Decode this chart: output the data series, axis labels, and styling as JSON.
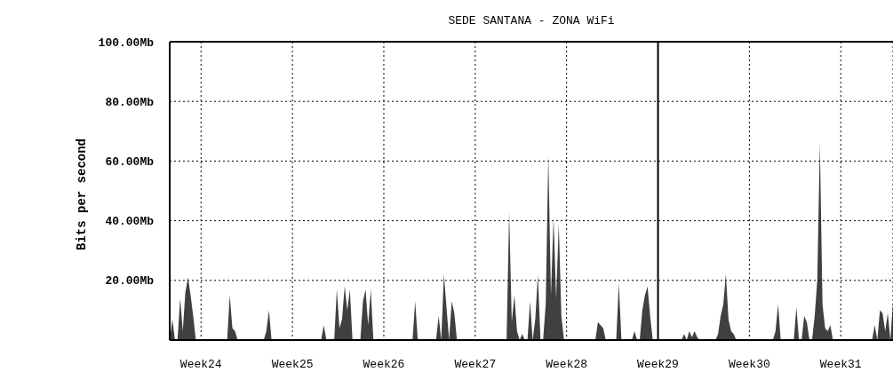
{
  "chart_data": {
    "type": "area",
    "title": "SEDE SANTANA - ZONA WiFi",
    "ylabel": "Bits per second",
    "categories": [
      null,
      null,
      null,
      null,
      null,
      null,
      null,
      null,
      null,
      null,
      null,
      null,
      "Week24",
      null,
      null,
      null,
      null,
      null,
      null,
      null,
      null,
      null,
      null,
      null,
      null,
      null,
      null,
      null,
      null,
      null,
      null,
      null,
      null,
      null,
      null,
      null,
      null,
      null,
      null,
      null,
      null,
      null,
      null,
      null,
      null,
      null,
      null,
      "Week25",
      null,
      null,
      null,
      null,
      null,
      null,
      null,
      null,
      null,
      null,
      null,
      null,
      null,
      null,
      null,
      null,
      null,
      null,
      null,
      null,
      null,
      null,
      null,
      null,
      null,
      null,
      null,
      null,
      null,
      null,
      null,
      null,
      null,
      null,
      "Week26",
      null,
      null,
      null,
      null,
      null,
      null,
      null,
      null,
      null,
      null,
      null,
      null,
      null,
      null,
      null,
      null,
      null,
      null,
      null,
      null,
      null,
      null,
      null,
      null,
      null,
      null,
      null,
      null,
      null,
      null,
      null,
      null,
      null,
      null,
      "Week27",
      null,
      null,
      null,
      null,
      null,
      null,
      null,
      null,
      null,
      null,
      null,
      null,
      null,
      null,
      null,
      null,
      null,
      null,
      null,
      null,
      null,
      null,
      null,
      null,
      null,
      null,
      null,
      null,
      null,
      null,
      null,
      null,
      null,
      null,
      "Week28",
      null,
      null,
      null,
      null,
      null,
      null,
      null,
      null,
      null,
      null,
      null,
      null,
      null,
      null,
      null,
      null,
      null,
      null,
      null,
      null,
      null,
      null,
      null,
      null,
      null,
      null,
      null,
      null,
      null,
      null,
      null,
      null,
      null,
      null,
      "Week29",
      null,
      null,
      null,
      null,
      null,
      null,
      null,
      null,
      null,
      null,
      null,
      null,
      null,
      null,
      null,
      null,
      null,
      null,
      null,
      null,
      null,
      null,
      null,
      null,
      null,
      null,
      null,
      null,
      null,
      null,
      null,
      null,
      null,
      null,
      "Week30",
      null,
      null,
      null,
      null,
      null,
      null,
      null,
      null,
      null,
      null,
      null,
      null,
      null,
      null,
      null,
      null,
      null,
      null,
      null,
      null,
      null,
      null,
      null,
      null,
      null,
      null,
      null,
      null,
      null,
      null,
      null,
      null,
      null,
      null,
      "Week31",
      null,
      null,
      null,
      null,
      null,
      null,
      null,
      null,
      null,
      null,
      null,
      null,
      null,
      null,
      null,
      null,
      null,
      null,
      null,
      null
    ],
    "series": [
      {
        "color": "#000000",
        "values": [
          0,
          7,
          0,
          0,
          14,
          3,
          16,
          21,
          15,
          8,
          0,
          0,
          0,
          0,
          0,
          0,
          0,
          0,
          0,
          0,
          0,
          0,
          0,
          15,
          4,
          3,
          0,
          0,
          0,
          0,
          0,
          0,
          0,
          0,
          0,
          0,
          0,
          3,
          10,
          0,
          0,
          0,
          0,
          0,
          0,
          0,
          0,
          0,
          0,
          0,
          0,
          0,
          0,
          0,
          0,
          0,
          0,
          0,
          0,
          5,
          0,
          0,
          0,
          0,
          17,
          4,
          7,
          18,
          10,
          17,
          0,
          0,
          0,
          0,
          13,
          17,
          5,
          17,
          0,
          0,
          0,
          0,
          0,
          0,
          0,
          0,
          0,
          0,
          0,
          0,
          0,
          0,
          0,
          0,
          13,
          0,
          0,
          0,
          0,
          0,
          0,
          0,
          0,
          8,
          0,
          22,
          11,
          0,
          13,
          9,
          0,
          0,
          0,
          0,
          0,
          0,
          0,
          0,
          0,
          0,
          0,
          0,
          0,
          0,
          0,
          0,
          0,
          0,
          0,
          0,
          43,
          6,
          15,
          3,
          0,
          2,
          0,
          0,
          13,
          0,
          7,
          22,
          0,
          0,
          12,
          62,
          15,
          41,
          14,
          39,
          8,
          0,
          0,
          0,
          0,
          0,
          0,
          0,
          0,
          0,
          0,
          0,
          0,
          0,
          6,
          5,
          4,
          0,
          0,
          0,
          0,
          0,
          19,
          0,
          0,
          0,
          0,
          0,
          3,
          0,
          0,
          10,
          15,
          18,
          8,
          0,
          0,
          0,
          0,
          0,
          0,
          0,
          0,
          0,
          0,
          0,
          0,
          2,
          0,
          3,
          1,
          3,
          1,
          0,
          0,
          0,
          0,
          0,
          0,
          0,
          2,
          8,
          12,
          22,
          7,
          3,
          2,
          0,
          0,
          0,
          0,
          0,
          0,
          0,
          0,
          0,
          0,
          0,
          0,
          0,
          0,
          0,
          3,
          12,
          0,
          0,
          0,
          0,
          0,
          0,
          11,
          0,
          0,
          8,
          6,
          0,
          0,
          8,
          20,
          66,
          12,
          4,
          3,
          5,
          0,
          0,
          0,
          0,
          0,
          0,
          0,
          0,
          0,
          0,
          0,
          0,
          0,
          0,
          0,
          0,
          5,
          0,
          10,
          9,
          3,
          9,
          0,
          13
        ]
      }
    ],
    "ylim": [
      0,
      100
    ],
    "yticks": [
      {
        "value": 20,
        "label": "20.00Mb"
      },
      {
        "value": 40,
        "label": "40.00Mb"
      },
      {
        "value": 60,
        "label": "60.00Mb"
      },
      {
        "value": 80,
        "label": "80.00Mb"
      },
      {
        "value": 100,
        "label": "100.00Mb"
      }
    ],
    "ref_lines": [
      {
        "axis": "x",
        "value": "Week29",
        "color": "#000000",
        "line_style": "solid"
      }
    ],
    "grid": true
  }
}
